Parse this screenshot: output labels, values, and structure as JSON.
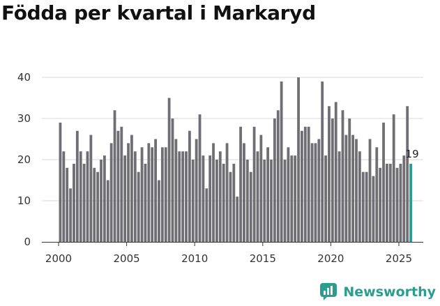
{
  "chart_data": {
    "type": "bar",
    "title": "Födda per kvartal i Markaryd",
    "xlabel": "",
    "ylabel": "",
    "ylim": [
      0,
      40
    ],
    "yticks": [
      0,
      10,
      20,
      30,
      40
    ],
    "xticks": [
      2000,
      2005,
      2010,
      2015,
      2020,
      2025
    ],
    "grid": true,
    "colors": {
      "bar": "#6f6e74",
      "highlight": "#2a9d8f"
    },
    "last_value_label": "19",
    "categories": [
      "2000 Q1",
      "2000 Q2",
      "2000 Q3",
      "2000 Q4",
      "2001 Q1",
      "2001 Q2",
      "2001 Q3",
      "2001 Q4",
      "2002 Q1",
      "2002 Q2",
      "2002 Q3",
      "2002 Q4",
      "2003 Q1",
      "2003 Q2",
      "2003 Q3",
      "2003 Q4",
      "2004 Q1",
      "2004 Q2",
      "2004 Q3",
      "2004 Q4",
      "2005 Q1",
      "2005 Q2",
      "2005 Q3",
      "2005 Q4",
      "2006 Q1",
      "2006 Q2",
      "2006 Q3",
      "2006 Q4",
      "2007 Q1",
      "2007 Q2",
      "2007 Q3",
      "2007 Q4",
      "2008 Q1",
      "2008 Q2",
      "2008 Q3",
      "2008 Q4",
      "2009 Q1",
      "2009 Q2",
      "2009 Q3",
      "2009 Q4",
      "2010 Q1",
      "2010 Q2",
      "2010 Q3",
      "2010 Q4",
      "2011 Q1",
      "2011 Q2",
      "2011 Q3",
      "2011 Q4",
      "2012 Q1",
      "2012 Q2",
      "2012 Q3",
      "2012 Q4",
      "2013 Q1",
      "2013 Q2",
      "2013 Q3",
      "2013 Q4",
      "2014 Q1",
      "2014 Q2",
      "2014 Q3",
      "2014 Q4",
      "2015 Q1",
      "2015 Q2",
      "2015 Q3",
      "2015 Q4",
      "2016 Q1",
      "2016 Q2",
      "2016 Q3",
      "2016 Q4",
      "2017 Q1",
      "2017 Q2",
      "2017 Q3",
      "2017 Q4",
      "2018 Q1",
      "2018 Q2",
      "2018 Q3",
      "2018 Q4",
      "2019 Q1",
      "2019 Q2",
      "2019 Q3",
      "2019 Q4",
      "2020 Q1",
      "2020 Q2",
      "2020 Q3",
      "2020 Q4",
      "2021 Q1",
      "2021 Q2",
      "2021 Q3",
      "2021 Q4",
      "2022 Q1",
      "2022 Q2",
      "2022 Q3",
      "2022 Q4",
      "2023 Q1",
      "2023 Q2",
      "2023 Q3",
      "2023 Q4",
      "2024 Q1",
      "2024 Q2",
      "2024 Q3",
      "2024 Q4",
      "2025 Q1",
      "2025 Q2",
      "2025 Q3",
      "2025 Q4"
    ],
    "values": [
      29,
      22,
      18,
      13,
      19,
      27,
      22,
      19,
      22,
      26,
      18,
      17,
      20,
      21,
      15,
      24,
      32,
      27,
      28,
      21,
      24,
      26,
      22,
      17,
      23,
      19,
      24,
      23,
      25,
      15,
      23,
      23,
      35,
      30,
      25,
      22,
      22,
      22,
      27,
      20,
      25,
      31,
      21,
      13,
      21,
      24,
      20,
      22,
      19,
      24,
      17,
      19,
      11,
      28,
      24,
      20,
      17,
      28,
      22,
      26,
      20,
      23,
      20,
      30,
      32,
      39,
      20,
      23,
      21,
      21,
      40,
      27,
      28,
      28,
      24,
      24,
      25,
      39,
      21,
      33,
      30,
      34,
      22,
      32,
      26,
      30,
      26,
      25,
      22,
      17,
      17,
      25,
      16,
      23,
      18,
      29,
      19,
      19,
      31,
      18,
      19,
      21,
      33,
      19
    ],
    "brand": "Newsworthy"
  }
}
